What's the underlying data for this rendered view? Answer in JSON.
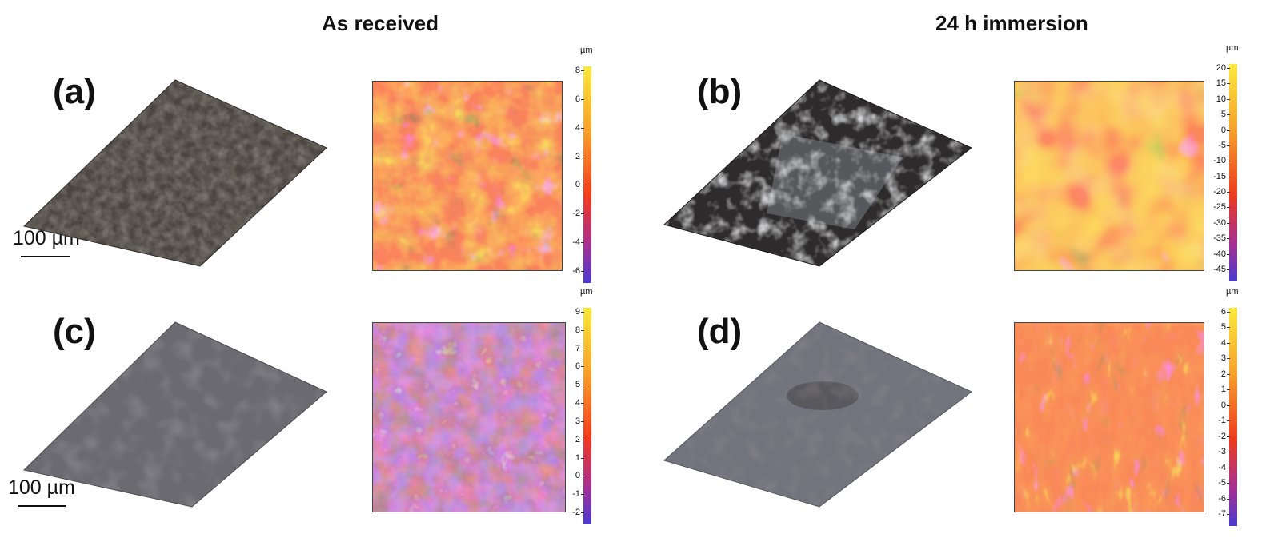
{
  "titles": {
    "left": "As received",
    "right": "24 h immersion"
  },
  "panels": [
    {
      "id": "a",
      "label": "(a)"
    },
    {
      "id": "b",
      "label": "(b)"
    },
    {
      "id": "c",
      "label": "(c)"
    },
    {
      "id": "d",
      "label": "(d)"
    }
  ],
  "scale_bar": "100 µm",
  "colorbars": [
    {
      "unit": "µm",
      "ticks": [
        "8",
        "6",
        "4",
        "2",
        "0",
        "-2",
        "-4",
        "-6"
      ]
    },
    {
      "unit": "µm",
      "ticks": [
        "20",
        "15",
        "10",
        "5",
        "0",
        "-5",
        "-10",
        "-15",
        "-20",
        "-25",
        "-30",
        "-35",
        "-40",
        "-45"
      ]
    },
    {
      "unit": "µm",
      "ticks": [
        "9",
        "8",
        "7",
        "6",
        "5",
        "4",
        "3",
        "2",
        "1",
        "0",
        "-1",
        "-2"
      ]
    },
    {
      "unit": "µm",
      "ticks": [
        "6",
        "5",
        "4",
        "3",
        "2",
        "1",
        "0",
        "-1",
        "-2",
        "-3",
        "-4",
        "-5",
        "-6",
        "-7"
      ]
    }
  ],
  "colors": {
    "map_low": "#4b3ad1",
    "map_mid": "#ef3b1c",
    "map_high": "#fbe93a",
    "surface_dark": "#3b3733",
    "surface_grey": "#6a6a70"
  }
}
